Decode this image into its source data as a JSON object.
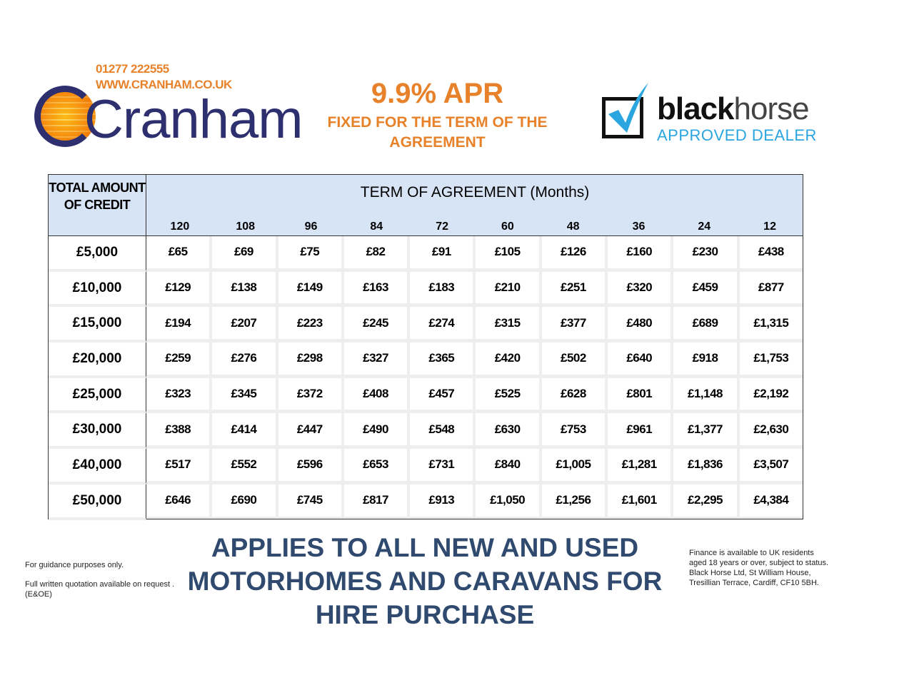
{
  "header": {
    "phone": "01277 222555",
    "website": "WWW.CRANHAM.CO.UK",
    "logo_text": "Cranham",
    "apr": "9.9% APR",
    "apr_subtitle": "FIXED FOR THE TERM OF THE AGREEMENT",
    "partner_logo": {
      "word_bold": "black",
      "word_light": "horse",
      "subtitle": "APPROVED DEALER"
    }
  },
  "colors": {
    "accent_orange": "#e8822a",
    "navy": "#2e2f6e",
    "header_blue": "#d7e4f6",
    "blackhorse_blue": "#2aa5e0",
    "applies_text": "#2f4a6e"
  },
  "table": {
    "credit_header": "TOTAL AMOUNT OF CREDIT",
    "term_header": "TERM OF AGREEMENT (Months)",
    "months": [
      "120",
      "108",
      "96",
      "84",
      "72",
      "60",
      "48",
      "36",
      "24",
      "12"
    ],
    "rows": [
      {
        "credit": "£5,000",
        "values": [
          "£65",
          "£69",
          "£75",
          "£82",
          "£91",
          "£105",
          "£126",
          "£160",
          "£230",
          "£438"
        ]
      },
      {
        "credit": "£10,000",
        "values": [
          "£129",
          "£138",
          "£149",
          "£163",
          "£183",
          "£210",
          "£251",
          "£320",
          "£459",
          "£877"
        ]
      },
      {
        "credit": "£15,000",
        "values": [
          "£194",
          "£207",
          "£223",
          "£245",
          "£274",
          "£315",
          "£377",
          "£480",
          "£689",
          "£1,315"
        ]
      },
      {
        "credit": "£20,000",
        "values": [
          "£259",
          "£276",
          "£298",
          "£327",
          "£365",
          "£420",
          "£502",
          "£640",
          "£918",
          "£1,753"
        ]
      },
      {
        "credit": "£25,000",
        "values": [
          "£323",
          "£345",
          "£372",
          "£408",
          "£457",
          "£525",
          "£628",
          "£801",
          "£1,148",
          "£2,192"
        ]
      },
      {
        "credit": "£30,000",
        "values": [
          "£388",
          "£414",
          "£447",
          "£490",
          "£548",
          "£630",
          "£753",
          "£961",
          "£1,377",
          "£2,630"
        ]
      },
      {
        "credit": "£40,000",
        "values": [
          "£517",
          "£552",
          "£596",
          "£653",
          "£731",
          "£840",
          "£1,005",
          "£1,281",
          "£1,836",
          "£3,507"
        ]
      },
      {
        "credit": "£50,000",
        "values": [
          "£646",
          "£690",
          "£745",
          "£817",
          "£913",
          "£1,050",
          "£1,256",
          "£1,601",
          "£2,295",
          "£4,384"
        ]
      }
    ]
  },
  "footer": {
    "applies": "APPLIES TO ALL NEW AND USED MOTORHOMES AND CARAVANS FOR HIRE PURCHASE",
    "guidance": "For guidance purposes only.",
    "quotation": "Full written quotation available on request . (E&OE)",
    "finance": "Finance is available to UK residents aged 18 years or over, subject to status. Black Horse Ltd, St William House, Tresillian Terrace, Cardiff, CF10 5BH."
  }
}
